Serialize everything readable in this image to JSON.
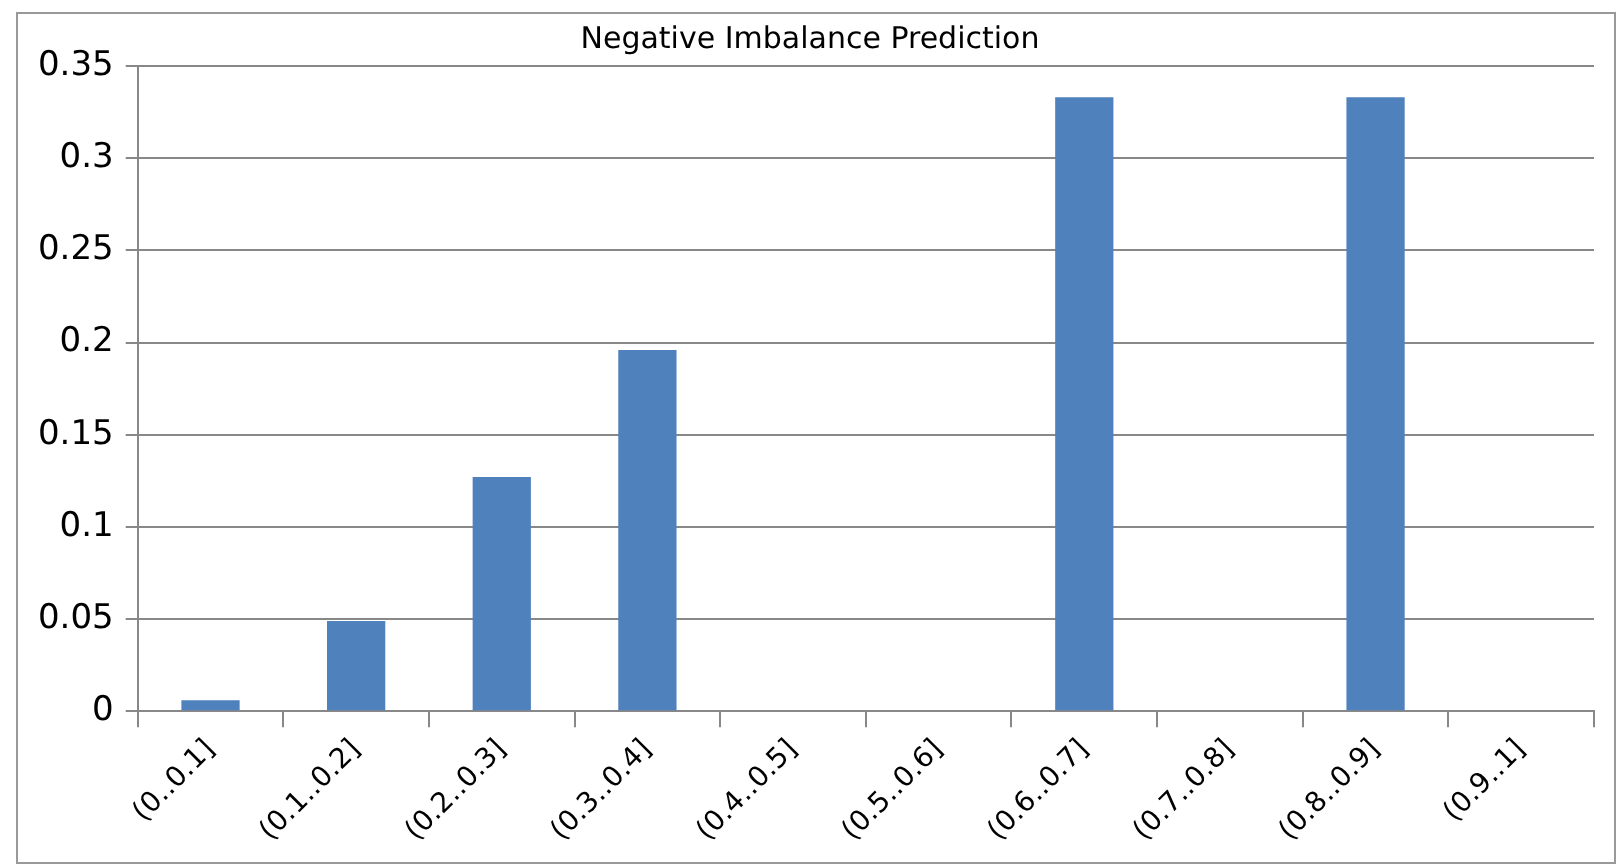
{
  "chart_data": {
    "type": "bar",
    "title": "Negative Imbalance Prediction",
    "categories": [
      "(0..0.1]",
      "(0.1..0.2]",
      "(0.2..0.3]",
      "(0.3..0.4]",
      "(0.4..0.5]",
      "(0.5..0.6]",
      "(0.6..0.7]",
      "(0.7..0.8]",
      "(0.8..0.9]",
      "(0.9..1]"
    ],
    "values": [
      0.006,
      0.049,
      0.127,
      0.196,
      0,
      0,
      0.333,
      0,
      0.333,
      0
    ],
    "color": "#4f81bd",
    "ylim": [
      0,
      0.35
    ],
    "yticks": [
      0,
      0.05,
      0.1,
      0.15,
      0.2,
      0.25,
      0.3,
      0.35
    ],
    "grid": "y",
    "legend": false
  }
}
